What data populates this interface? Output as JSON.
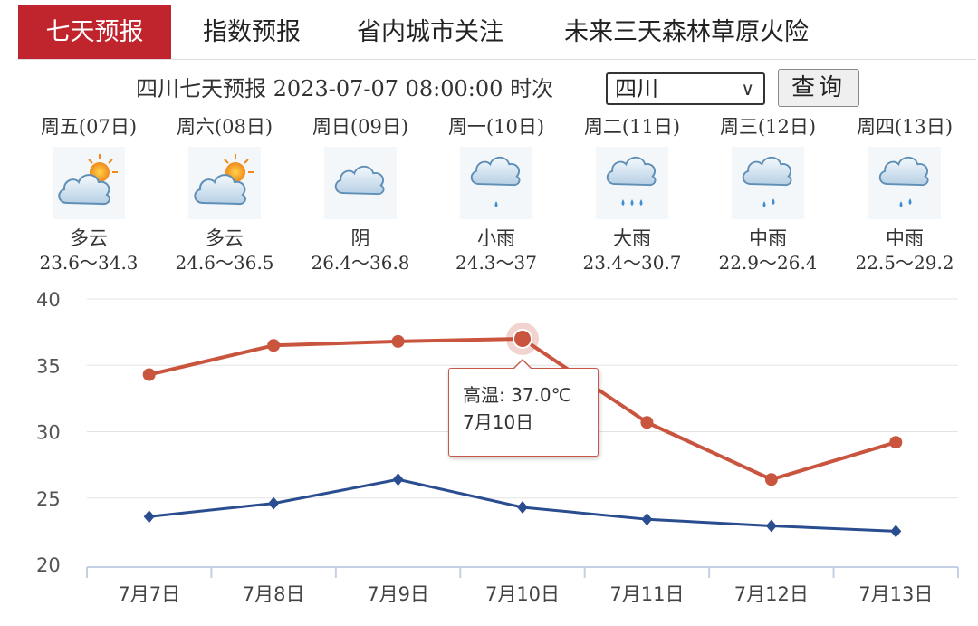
{
  "tabs": [
    {
      "label": "七天预报",
      "active": true
    },
    {
      "label": "指数预报",
      "active": false
    },
    {
      "label": "省内城市关注",
      "active": false
    },
    {
      "label": "未来三天森林草原火险",
      "active": false
    }
  ],
  "query": {
    "title": "四川七天预报",
    "datetime": "2023-07-07 08:00:00",
    "time_label": "时次",
    "region_selected": "四川",
    "search_label": "查询"
  },
  "days": [
    {
      "name": "周五(07日)",
      "weather": "多云",
      "icon": "partly-cloudy-icon",
      "range": "23.6～34.3"
    },
    {
      "name": "周六(08日)",
      "weather": "多云",
      "icon": "partly-cloudy-icon",
      "range": "24.6～36.5"
    },
    {
      "name": "周日(09日)",
      "weather": "阴",
      "icon": "overcast-icon",
      "range": "26.4～36.8"
    },
    {
      "name": "周一(10日)",
      "weather": "小雨",
      "icon": "light-rain-icon",
      "range": "24.3～37"
    },
    {
      "name": "周二(11日)",
      "weather": "大雨",
      "icon": "heavy-rain-icon",
      "range": "23.4～30.7"
    },
    {
      "name": "周三(12日)",
      "weather": "中雨",
      "icon": "moderate-rain-icon",
      "range": "22.9～26.4"
    },
    {
      "name": "周四(13日)",
      "weather": "中雨",
      "icon": "moderate-rain-icon",
      "range": "22.5～29.2"
    }
  ],
  "colors": {
    "accent": "#c0252e",
    "high_line": "#c9553f",
    "low_line": "#2a4d8f",
    "grid": "#e3e3e3",
    "axis": "#c5d0e6"
  },
  "chart_data": {
    "type": "line",
    "categories": [
      "7月7日",
      "7月8日",
      "7月9日",
      "7月10日",
      "7月11日",
      "7月12日",
      "7月13日"
    ],
    "series": [
      {
        "name": "高温",
        "color": "#c9553f",
        "marker": "circle",
        "values": [
          34.3,
          36.5,
          36.8,
          37.0,
          30.7,
          26.4,
          29.2
        ]
      },
      {
        "key": "low",
        "color": "#2a4d8f",
        "marker": "diamond",
        "values": [
          23.6,
          24.6,
          26.4,
          24.3,
          23.4,
          22.9,
          22.5
        ]
      }
    ],
    "ylim": [
      20,
      40
    ],
    "yticks": [
      20,
      25,
      30,
      35,
      40
    ],
    "grid": true,
    "tooltip": {
      "series": "高温",
      "text": "高温: 37.0℃",
      "category": "7月10日",
      "index": 3
    }
  }
}
